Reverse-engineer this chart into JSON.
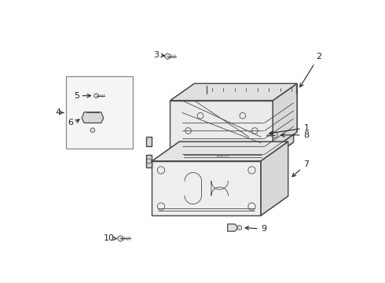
{
  "bg_color": "#ffffff",
  "line_color": "#4a4a4a",
  "label_color": "#222222",
  "figsize": [
    4.9,
    3.6
  ],
  "dpi": 100
}
